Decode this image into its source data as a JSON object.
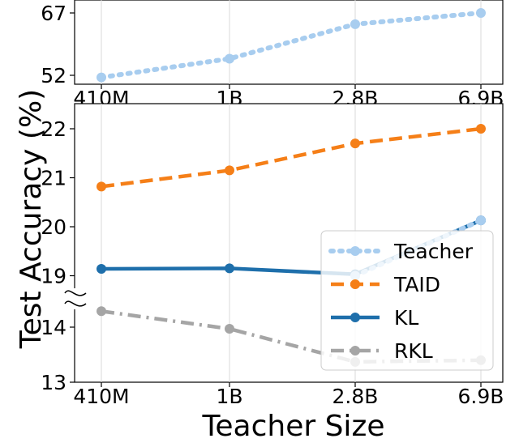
{
  "chart_data": {
    "type": "line",
    "categories": [
      "410M",
      "1B",
      "2.8B",
      "6.9B"
    ],
    "xlabel": "Teacher Size",
    "ylabel": "Test Accuracy (%)",
    "grid": "x-only",
    "legend_position": "bottom-right",
    "top_panel": {
      "ylim": [
        52,
        67
      ],
      "yticks": [
        "52",
        "67"
      ],
      "series": [
        {
          "name": "Teacher",
          "values": [
            51.5,
            56.0,
            64.3,
            67.0
          ],
          "color": "#a8cdef",
          "style": "dotted"
        }
      ]
    },
    "bottom_panel": {
      "broken_axis": true,
      "upper_ylim": [
        18.6,
        22.4
      ],
      "upper_yticks": [
        "19",
        "20",
        "21",
        "22"
      ],
      "lower_ylim": [
        13.0,
        14.6
      ],
      "lower_yticks": [
        "13",
        "14"
      ],
      "series": [
        {
          "name": "Teacher",
          "values": [
            null,
            null,
            19.0,
            20.13
          ],
          "color": "#a8cdef",
          "style": "dotted",
          "legend_only_partial": true
        },
        {
          "name": "TAID",
          "values": [
            20.82,
            21.15,
            21.7,
            22.0
          ],
          "color": "#f57f18",
          "style": "dashed"
        },
        {
          "name": "KL",
          "values": [
            19.14,
            19.15,
            19.03,
            20.13
          ],
          "color": "#1e6fab",
          "style": "solid"
        },
        {
          "name": "RKL",
          "values": [
            14.29,
            13.97,
            13.37,
            13.4
          ],
          "color": "#a5a5a5",
          "style": "dashdot"
        }
      ]
    },
    "legend": [
      "Teacher",
      "TAID",
      "KL",
      "RKL"
    ]
  }
}
